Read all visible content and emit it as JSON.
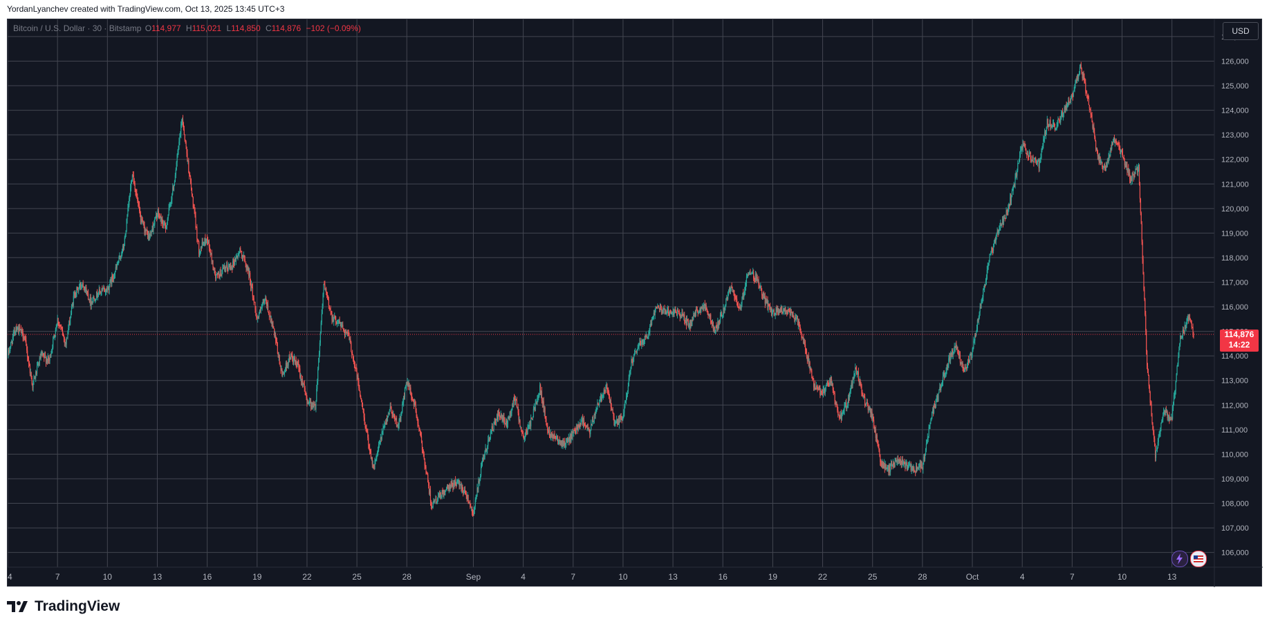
{
  "header": {
    "author_line": "YordanLyanchev created with TradingView.com, Oct 13, 2025 13:45 UTC+3"
  },
  "legend": {
    "symbol": "Bitcoin / U.S. Dollar · 30 · Bitstamp",
    "o_label": "O",
    "o_value": "114,977",
    "h_label": "H",
    "h_value": "115,021",
    "l_label": "L",
    "l_value": "114,850",
    "c_label": "C",
    "c_value": "114,876",
    "change": "−102 (−0.09%)"
  },
  "currency_button": "USD",
  "price_badge": {
    "price": "114,876",
    "countdown": "14:22"
  },
  "footer": {
    "brand": "TradingView"
  },
  "colors": {
    "background": "#131722",
    "grid": "#434651",
    "up": "#26a69a",
    "down": "#ef5350",
    "axis_text": "#b2b5be",
    "last_price": "#f23645"
  },
  "chart_data": {
    "type": "candlestick",
    "title": "",
    "xlabel": "",
    "ylabel": "",
    "ylim": [
      105400,
      127700
    ],
    "y_ticks": [
      106000,
      107000,
      108000,
      109000,
      110000,
      111000,
      112000,
      113000,
      114000,
      115000,
      116000,
      117000,
      118000,
      119000,
      120000,
      121000,
      122000,
      123000,
      124000,
      125000,
      126000,
      127000
    ],
    "y_tick_labels": [
      "106,000",
      "107,000",
      "108,000",
      "109,000",
      "110,000",
      "111,000",
      "112,000",
      "113,000",
      "114,000",
      "115,000",
      "116,000",
      "117,000",
      "118,000",
      "119,000",
      "120,000",
      "121,000",
      "122,000",
      "123,000",
      "124,000",
      "125,000",
      "126,000",
      "127,000"
    ],
    "x_ticks": [
      {
        "day": 0,
        "label": "4"
      },
      {
        "day": 3,
        "label": "7"
      },
      {
        "day": 6,
        "label": "10"
      },
      {
        "day": 9,
        "label": "13"
      },
      {
        "day": 12,
        "label": "16"
      },
      {
        "day": 15,
        "label": "19"
      },
      {
        "day": 18,
        "label": "22"
      },
      {
        "day": 21,
        "label": "25"
      },
      {
        "day": 24,
        "label": "28"
      },
      {
        "day": 28,
        "label": "Sep"
      },
      {
        "day": 31,
        "label": "4"
      },
      {
        "day": 34,
        "label": "7"
      },
      {
        "day": 37,
        "label": "10"
      },
      {
        "day": 40,
        "label": "13"
      },
      {
        "day": 43,
        "label": "16"
      },
      {
        "day": 46,
        "label": "19"
      },
      {
        "day": 49,
        "label": "22"
      },
      {
        "day": 52,
        "label": "25"
      },
      {
        "day": 55,
        "label": "28"
      },
      {
        "day": 58,
        "label": "Oct"
      },
      {
        "day": 61,
        "label": "4"
      },
      {
        "day": 64,
        "label": "7"
      },
      {
        "day": 67,
        "label": "10"
      },
      {
        "day": 70,
        "label": "13"
      }
    ],
    "x_range_days": [
      0,
      72.55
    ],
    "last_price": 114876,
    "price_path": [
      [
        0,
        114000
      ],
      [
        0.5,
        115200
      ],
      [
        1,
        114800
      ],
      [
        1.5,
        112800
      ],
      [
        2,
        114000
      ],
      [
        2.5,
        113800
      ],
      [
        3,
        115500
      ],
      [
        3.5,
        114500
      ],
      [
        4,
        116500
      ],
      [
        4.5,
        117000
      ],
      [
        5,
        116200
      ],
      [
        5.5,
        116600
      ],
      [
        6,
        116700
      ],
      [
        6.5,
        117500
      ],
      [
        7,
        118500
      ],
      [
        7.5,
        121500
      ],
      [
        8,
        119500
      ],
      [
        8.5,
        118800
      ],
      [
        9,
        119800
      ],
      [
        9.5,
        119200
      ],
      [
        10,
        121000
      ],
      [
        10.5,
        123700
      ],
      [
        11,
        121000
      ],
      [
        11.5,
        118300
      ],
      [
        12,
        118800
      ],
      [
        12.5,
        117200
      ],
      [
        13,
        117500
      ],
      [
        13.5,
        117700
      ],
      [
        14,
        118300
      ],
      [
        14.5,
        117400
      ],
      [
        15,
        115500
      ],
      [
        15.5,
        116300
      ],
      [
        16,
        115000
      ],
      [
        16.5,
        113200
      ],
      [
        17,
        114000
      ],
      [
        17.5,
        113500
      ],
      [
        18,
        112200
      ],
      [
        18.5,
        111900
      ],
      [
        19,
        116900
      ],
      [
        19.5,
        115600
      ],
      [
        20,
        115300
      ],
      [
        20.5,
        114800
      ],
      [
        21,
        113200
      ],
      [
        21.5,
        111200
      ],
      [
        22,
        109400
      ],
      [
        22.5,
        110800
      ],
      [
        23,
        111900
      ],
      [
        23.5,
        111100
      ],
      [
        24,
        113000
      ],
      [
        24.5,
        111900
      ],
      [
        25,
        110000
      ],
      [
        25.5,
        107900
      ],
      [
        26,
        108300
      ],
      [
        26.5,
        108600
      ],
      [
        27,
        108900
      ],
      [
        27.5,
        108500
      ],
      [
        28,
        107600
      ],
      [
        28.5,
        109500
      ],
      [
        29,
        110800
      ],
      [
        29.5,
        111600
      ],
      [
        30,
        111200
      ],
      [
        30.5,
        112300
      ],
      [
        31,
        110600
      ],
      [
        31.5,
        111400
      ],
      [
        32,
        112700
      ],
      [
        32.5,
        110900
      ],
      [
        33,
        110700
      ],
      [
        33.5,
        110400
      ],
      [
        34,
        110800
      ],
      [
        34.5,
        111400
      ],
      [
        35,
        110900
      ],
      [
        35.5,
        112100
      ],
      [
        36,
        112800
      ],
      [
        36.5,
        111200
      ],
      [
        37,
        111500
      ],
      [
        37.5,
        113700
      ],
      [
        38,
        114500
      ],
      [
        38.5,
        114900
      ],
      [
        39,
        116100
      ],
      [
        39.5,
        115800
      ],
      [
        40,
        115800
      ],
      [
        40.5,
        115700
      ],
      [
        41,
        115200
      ],
      [
        41.5,
        115900
      ],
      [
        42,
        116000
      ],
      [
        42.5,
        115000
      ],
      [
        43,
        115800
      ],
      [
        43.5,
        116900
      ],
      [
        44,
        115800
      ],
      [
        44.5,
        117400
      ],
      [
        45,
        117200
      ],
      [
        45.5,
        116300
      ],
      [
        46,
        115700
      ],
      [
        46.5,
        115900
      ],
      [
        47,
        115800
      ],
      [
        47.5,
        115400
      ],
      [
        48,
        114200
      ],
      [
        48.5,
        112700
      ],
      [
        49,
        112500
      ],
      [
        49.5,
        113000
      ],
      [
        50,
        111400
      ],
      [
        50.5,
        112100
      ],
      [
        51,
        113500
      ],
      [
        51.5,
        112200
      ],
      [
        52,
        111500
      ],
      [
        52.5,
        109600
      ],
      [
        53,
        109400
      ],
      [
        53.5,
        109800
      ],
      [
        54,
        109500
      ],
      [
        54.5,
        109400
      ],
      [
        55,
        109500
      ],
      [
        55.5,
        111500
      ],
      [
        56,
        112500
      ],
      [
        56.5,
        113700
      ],
      [
        57,
        114500
      ],
      [
        57.5,
        113300
      ],
      [
        58,
        114200
      ],
      [
        58.5,
        116000
      ],
      [
        59,
        117900
      ],
      [
        59.5,
        119000
      ],
      [
        60,
        119700
      ],
      [
        60.5,
        120900
      ],
      [
        61,
        122600
      ],
      [
        61.5,
        122100
      ],
      [
        62,
        121800
      ],
      [
        62.5,
        123500
      ],
      [
        63,
        123300
      ],
      [
        63.5,
        124000
      ],
      [
        64,
        124600
      ],
      [
        64.5,
        125800
      ],
      [
        65,
        124300
      ],
      [
        65.5,
        122200
      ],
      [
        66,
        121500
      ],
      [
        66.5,
        122900
      ],
      [
        67,
        122200
      ],
      [
        67.5,
        121200
      ],
      [
        68,
        121700
      ],
      [
        68.5,
        113700
      ],
      [
        69,
        109900
      ],
      [
        69.5,
        111700
      ],
      [
        70,
        111500
      ],
      [
        70.5,
        114700
      ],
      [
        71,
        115600
      ],
      [
        71.3,
        114876
      ]
    ]
  }
}
